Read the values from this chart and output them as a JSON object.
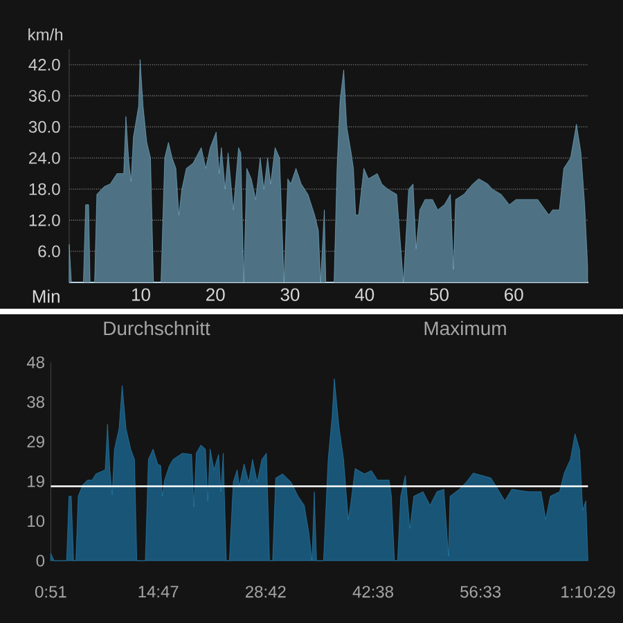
{
  "chart_data": [
    {
      "type": "area",
      "ylabel": "km/h",
      "xlabel": "Min",
      "xlim": [
        0.4,
        70
      ],
      "ylim": [
        0,
        45
      ],
      "xticks": [
        10,
        20,
        30,
        40,
        50,
        60
      ],
      "yticks": [
        {
          "value": 6,
          "label": "6.0"
        },
        {
          "value": 12,
          "label": "12.0"
        },
        {
          "value": 18,
          "label": "18.0"
        },
        {
          "value": 24,
          "label": "24.0"
        },
        {
          "value": 30,
          "label": "30.0"
        },
        {
          "value": 36,
          "label": "36.0"
        },
        {
          "value": 42,
          "label": "42.0"
        }
      ],
      "grid": "y",
      "series": [
        {
          "color": "#8ecfee",
          "x": [
            0.4,
            0.7,
            2.3,
            2.6,
            3.0,
            3.2,
            3.8,
            4.1,
            5.1,
            5.9,
            6.8,
            7.7,
            8.0,
            8.4,
            8.7,
            9.0,
            9.7,
            9.9,
            10.3,
            10.8,
            11.3,
            11.7,
            12.7,
            13.2,
            13.7,
            14.2,
            14.7,
            15.1,
            15.5,
            16.1,
            17.0,
            18.1,
            18.7,
            19.3,
            20.1,
            20.5,
            20.8,
            21.3,
            21.7,
            22.4,
            23.1,
            23.4,
            23.8,
            24.2,
            24.8,
            25.4,
            26.0,
            26.5,
            27.0,
            27.4,
            28.0,
            28.6,
            29.2,
            29.7,
            30.1,
            30.8,
            31.5,
            32.4,
            33.3,
            33.8,
            34.1,
            34.6,
            34.8,
            35.9,
            36.3,
            36.7,
            37.2,
            37.6,
            38.2,
            38.5,
            38.8,
            39.2,
            39.9,
            40.5,
            41.7,
            42.3,
            43.1,
            44.3,
            45.2,
            45.9,
            46.5,
            46.9,
            47.4,
            48.1,
            49.1,
            49.8,
            50.7,
            51.5,
            51.9,
            52.2,
            53.3,
            54.5,
            55.3,
            56.5,
            57.1,
            58.3,
            59.4,
            60.3,
            61.7,
            63.2,
            64.7,
            65.2,
            66.1,
            66.7,
            67.6,
            68.4,
            69.0,
            69.5,
            69.9
          ],
          "values": [
            7.3,
            0,
            0,
            15,
            15,
            0,
            0,
            17,
            18.5,
            19,
            21,
            21,
            32,
            23,
            19.5,
            28,
            34,
            43,
            34,
            27,
            24,
            0,
            0,
            24,
            27,
            24,
            22,
            13,
            18,
            22,
            23,
            26,
            22,
            26,
            29,
            21,
            26,
            18,
            25,
            14,
            26,
            25,
            0,
            22,
            20,
            16,
            24,
            18,
            24,
            19,
            26,
            24,
            0,
            20,
            19,
            22,
            19,
            17,
            13,
            10,
            0,
            14,
            0,
            0,
            22,
            35,
            41,
            30,
            25,
            22,
            13,
            13,
            22,
            20,
            21,
            19,
            18,
            17,
            0,
            18,
            19,
            6.5,
            14,
            16,
            16,
            14,
            15,
            17,
            2.5,
            16,
            17,
            19,
            20,
            19,
            18,
            17,
            15,
            16,
            16,
            16,
            13,
            14,
            14,
            22,
            24,
            30.5,
            25,
            15,
            3
          ]
        }
      ]
    },
    {
      "type": "area",
      "annotations": [
        "Durchschnitt",
        "Maximum"
      ],
      "xlim": [
        0.85,
        70.48
      ],
      "ylim": [
        0,
        48
      ],
      "xticks": [
        {
          "value": 0.85,
          "label": "0:51"
        },
        {
          "value": 14.78,
          "label": "14:47"
        },
        {
          "value": 28.7,
          "label": "28:42"
        },
        {
          "value": 42.63,
          "label": "42:38"
        },
        {
          "value": 56.55,
          "label": "56:33"
        },
        {
          "value": 70.48,
          "label": "1:10:29"
        }
      ],
      "grid": false,
      "yticks": [
        0,
        {
          "value": 9.6,
          "label": "10"
        },
        {
          "value": 19.2,
          "label": "19"
        },
        {
          "value": 28.8,
          "label": "29"
        },
        {
          "value": 38.4,
          "label": "38"
        },
        48
      ],
      "ref_lines": [
        {
          "axis": "y",
          "value": 18,
          "color": "#ffffff"
        }
      ],
      "series": [
        {
          "color": "#2e9bd6",
          "x": [
            0.85,
            1.3,
            2.9,
            3.2,
            3.5,
            3.8,
            4.1,
            4.4,
            5.0,
            5.6,
            6.2,
            6.7,
            7.9,
            8.2,
            8.5,
            8.8,
            9.1,
            9.7,
            10.1,
            10.6,
            11.2,
            11.7,
            12.0,
            13.1,
            13.5,
            14.1,
            14.7,
            15.1,
            15.3,
            15.6,
            16.2,
            16.7,
            17.9,
            19.1,
            19.4,
            19.7,
            20.3,
            20.9,
            21.2,
            21.5,
            22.0,
            22.6,
            22.9,
            23.2,
            23.6,
            24.0,
            24.5,
            25.0,
            25.3,
            25.9,
            26.5,
            27.0,
            27.6,
            28.2,
            28.8,
            29.2,
            29.6,
            30.0,
            30.9,
            32.0,
            32.9,
            33.7,
            34.3,
            34.7,
            35.0,
            35.3,
            36.2,
            36.8,
            37.3,
            37.6,
            38.2,
            38.8,
            39.4,
            39.7,
            40.3,
            41.5,
            42.4,
            43.2,
            44.7,
            45.0,
            45.4,
            45.8,
            46.2,
            46.8,
            47.4,
            47.9,
            49.1,
            50.0,
            50.9,
            51.8,
            52.4,
            52.6,
            53.8,
            54.7,
            55.6,
            56.8,
            57.9,
            58.8,
            59.7,
            60.6,
            62.7,
            64.4,
            65.0,
            65.6,
            66.8,
            67.4,
            68.2,
            68.8,
            69.4,
            69.8,
            70.2,
            70.48
          ],
          "values": [
            1.7,
            0,
            0,
            15.6,
            15.6,
            0,
            0,
            15.6,
            18.4,
            19.5,
            19.5,
            21,
            22,
            33,
            22,
            16,
            27,
            32,
            42.4,
            32,
            27,
            24.5,
            0,
            0,
            24.5,
            27,
            23.4,
            23,
            15.6,
            19.5,
            22.9,
            24.5,
            26,
            25.7,
            13,
            26,
            28,
            27,
            14.5,
            27,
            22,
            25.7,
            16.7,
            26,
            0,
            0,
            19,
            22,
            18,
            23.4,
            19,
            24.5,
            19,
            24.5,
            26,
            0,
            0,
            20,
            21,
            19,
            15.6,
            13.4,
            6.7,
            0,
            16.7,
            0,
            0,
            24.5,
            34.6,
            44,
            32.4,
            24.5,
            10,
            13.4,
            22.3,
            21,
            21.8,
            19.5,
            19.5,
            15.6,
            0,
            0,
            15.6,
            20.6,
            7.8,
            15.6,
            16.7,
            13.4,
            16.7,
            17.3,
            1.1,
            15.6,
            17.3,
            19,
            21.2,
            20.6,
            20,
            17.3,
            14.5,
            17.3,
            16.7,
            16.7,
            10,
            15.6,
            16.7,
            21.2,
            24.5,
            30.7,
            26.8,
            12.3,
            14.5,
            0
          ]
        }
      ]
    }
  ]
}
